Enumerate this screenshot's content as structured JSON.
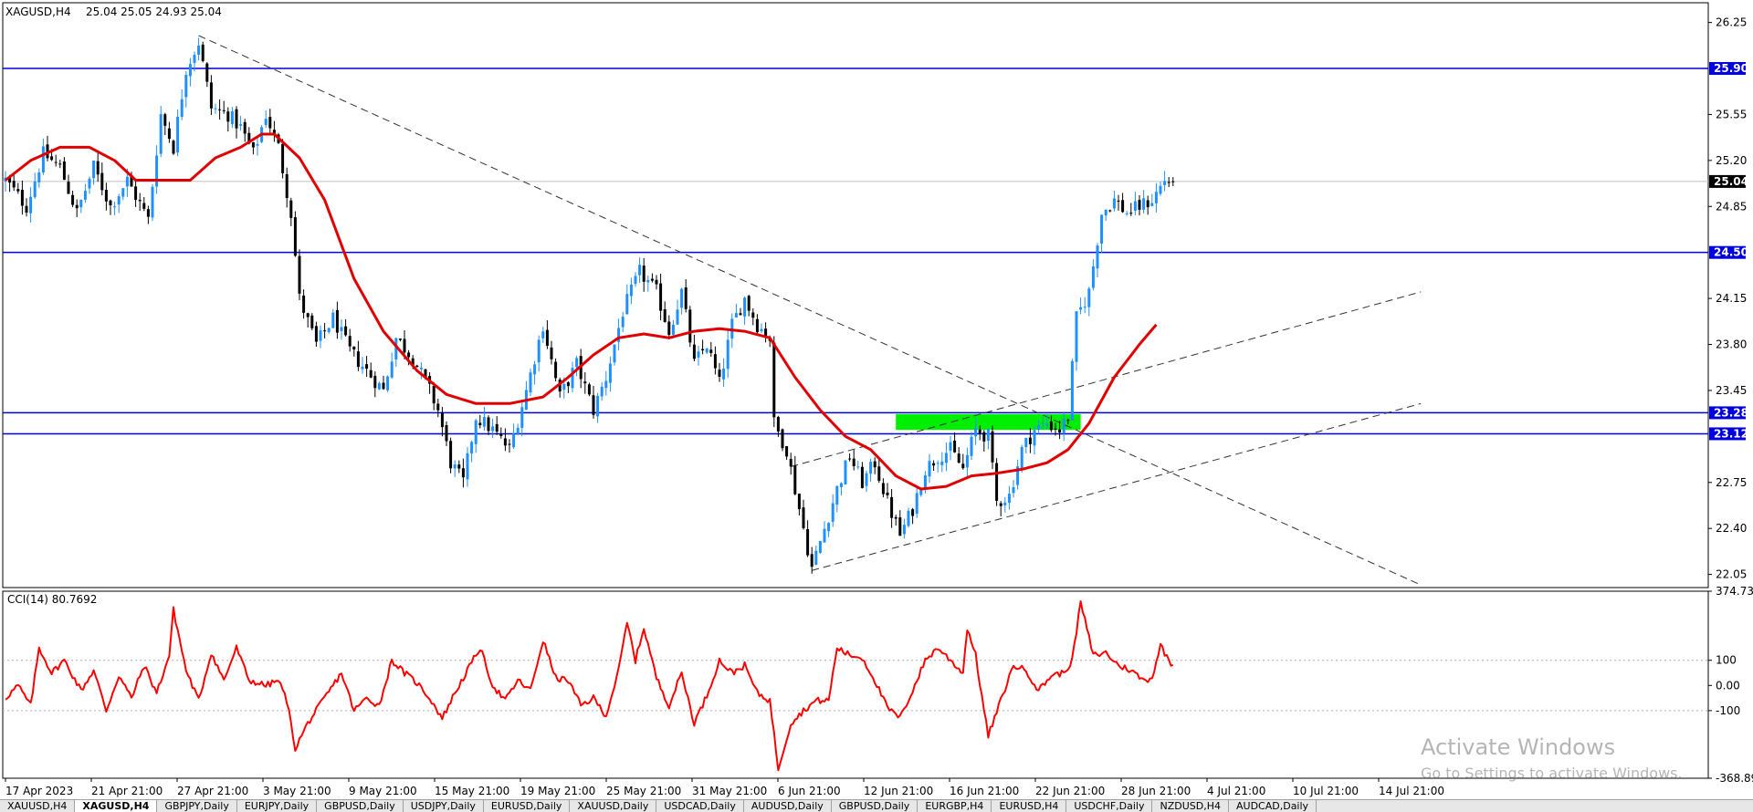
{
  "header": {
    "symbol": "XAGUSD,H4",
    "ohlc": "25.04 25.05 24.93 25.04"
  },
  "indicator": {
    "label": "CCI(14) 80.7692",
    "axis_labels": [
      "374.735",
      "100",
      "0.00",
      "-100",
      "-368.898"
    ]
  },
  "price_axis": {
    "ticks": [
      "26.25",
      "25.55",
      "25.20",
      "24.85",
      "24.15",
      "23.80",
      "23.45",
      "22.75",
      "22.40",
      "22.05"
    ],
    "level_tags": [
      "25.90",
      "25.04",
      "24.50",
      "23.28",
      "23.12"
    ]
  },
  "time_axis": {
    "labels": [
      "17 Apr 2023",
      "21 Apr 21:00",
      "27 Apr 21:00",
      "3 May 21:00",
      "9 May 21:00",
      "15 May 21:00",
      "19 May 21:00",
      "25 May 21:00",
      "31 May 21:00",
      "6 Jun 21:00",
      "12 Jun 21:00",
      "16 Jun 21:00",
      "22 Jun 21:00",
      "28 Jun 21:00",
      "4 Jul 21:00",
      "10 Jul 21:00",
      "14 Jul 21:00"
    ]
  },
  "tabs": [
    "XAUUSD,H4",
    "XAGUSD,H4",
    "GBPJPY,Daily",
    "EURJPY,Daily",
    "GBPUSD,Daily",
    "USDJPY,Daily",
    "EURUSD,Daily",
    "XAUUSD,Daily",
    "USDCAD,Daily",
    "AUDUSD,Daily",
    "GBPUSD,Daily",
    "EURGBP,H4",
    "EURUSD,H4",
    "USDCHF,Daily",
    "NZDUSD,H4",
    "AUDCAD,Daily"
  ],
  "watermark": {
    "title": "Activate Windows",
    "subtitle": "Go to Settings to activate Windows."
  },
  "colors": {
    "candle_up": "#1e90ff",
    "candle_down": "#000000",
    "moving_average": "#e00000",
    "cci_line": "#ff0000",
    "horizontal_levels": "#0000dd",
    "level_tag_bg": "#0000dd",
    "current_price_tag_bg": "#000000",
    "zone_fill": "#00ee00",
    "trendlines": "#333333"
  },
  "chart_data": {
    "type": "candlestick",
    "symbol": "XAGUSD",
    "timeframe": "H4",
    "ylim": [
      21.95,
      26.4
    ],
    "horizontal_levels": [
      25.9,
      24.5,
      23.28,
      23.12
    ],
    "current_price": 25.04,
    "anchors": [
      {
        "t": 0,
        "p": 25.05
      },
      {
        "t": 5,
        "p": 24.85
      },
      {
        "t": 9,
        "p": 25.25
      },
      {
        "t": 13,
        "p": 25.15
      },
      {
        "t": 17,
        "p": 24.8
      },
      {
        "t": 21,
        "p": 25.15
      },
      {
        "t": 25,
        "p": 24.85
      },
      {
        "t": 29,
        "p": 25.05
      },
      {
        "t": 34,
        "p": 24.75
      },
      {
        "t": 37,
        "p": 25.55
      },
      {
        "t": 40,
        "p": 25.3
      },
      {
        "t": 43,
        "p": 25.9
      },
      {
        "t": 46,
        "p": 26.1
      },
      {
        "t": 49,
        "p": 25.6
      },
      {
        "t": 53,
        "p": 25.55
      },
      {
        "t": 56,
        "p": 25.45
      },
      {
        "t": 59,
        "p": 25.25
      },
      {
        "t": 62,
        "p": 25.55
      },
      {
        "t": 65,
        "p": 25.3
      },
      {
        "t": 68,
        "p": 24.8
      },
      {
        "t": 70,
        "p": 24.15
      },
      {
        "t": 74,
        "p": 23.8
      },
      {
        "t": 78,
        "p": 24.0
      },
      {
        "t": 82,
        "p": 23.75
      },
      {
        "t": 86,
        "p": 23.6
      },
      {
        "t": 90,
        "p": 23.45
      },
      {
        "t": 93,
        "p": 23.85
      },
      {
        "t": 97,
        "p": 23.7
      },
      {
        "t": 101,
        "p": 23.45
      },
      {
        "t": 103,
        "p": 23.3
      },
      {
        "t": 106,
        "p": 22.9
      },
      {
        "t": 109,
        "p": 22.75
      },
      {
        "t": 112,
        "p": 23.25
      },
      {
        "t": 116,
        "p": 23.15
      },
      {
        "t": 120,
        "p": 23.0
      },
      {
        "t": 124,
        "p": 23.45
      },
      {
        "t": 128,
        "p": 23.95
      },
      {
        "t": 132,
        "p": 23.4
      },
      {
        "t": 136,
        "p": 23.65
      },
      {
        "t": 140,
        "p": 23.3
      },
      {
        "t": 143,
        "p": 23.55
      },
      {
        "t": 147,
        "p": 24.05
      },
      {
        "t": 151,
        "p": 24.35
      },
      {
        "t": 155,
        "p": 24.2
      },
      {
        "t": 158,
        "p": 23.9
      },
      {
        "t": 161,
        "p": 24.2
      },
      {
        "t": 164,
        "p": 23.65
      },
      {
        "t": 167,
        "p": 23.8
      },
      {
        "t": 170,
        "p": 23.5
      },
      {
        "t": 173,
        "p": 23.95
      },
      {
        "t": 176,
        "p": 24.15
      },
      {
        "t": 179,
        "p": 23.95
      },
      {
        "t": 182,
        "p": 23.85
      },
      {
        "t": 183,
        "p": 23.2
      },
      {
        "t": 186,
        "p": 23.0
      },
      {
        "t": 189,
        "p": 22.55
      },
      {
        "t": 192,
        "p": 22.1
      },
      {
        "t": 195,
        "p": 22.4
      },
      {
        "t": 198,
        "p": 22.7
      },
      {
        "t": 201,
        "p": 22.95
      },
      {
        "t": 204,
        "p": 22.75
      },
      {
        "t": 207,
        "p": 22.9
      },
      {
        "t": 210,
        "p": 22.6
      },
      {
        "t": 213,
        "p": 22.35
      },
      {
        "t": 216,
        "p": 22.55
      },
      {
        "t": 219,
        "p": 22.85
      },
      {
        "t": 222,
        "p": 22.95
      },
      {
        "t": 225,
        "p": 23.0
      },
      {
        "t": 228,
        "p": 22.85
      },
      {
        "t": 231,
        "p": 23.15
      },
      {
        "t": 234,
        "p": 23.1
      },
      {
        "t": 236,
        "p": 22.6
      },
      {
        "t": 239,
        "p": 22.65
      },
      {
        "t": 242,
        "p": 23.0
      },
      {
        "t": 245,
        "p": 23.15
      },
      {
        "t": 248,
        "p": 23.2
      },
      {
        "t": 251,
        "p": 23.15
      },
      {
        "t": 253,
        "p": 23.25
      },
      {
        "t": 255,
        "p": 24.0
      },
      {
        "t": 258,
        "p": 24.2
      },
      {
        "t": 261,
        "p": 24.8
      },
      {
        "t": 264,
        "p": 24.9
      },
      {
        "t": 267,
        "p": 24.8
      },
      {
        "t": 270,
        "p": 24.85
      },
      {
        "t": 273,
        "p": 24.9
      },
      {
        "t": 276,
        "p": 25.05
      },
      {
        "t": 278,
        "p": 25.04
      }
    ],
    "moving_average": [
      {
        "t": 0,
        "p": 25.05
      },
      {
        "t": 6,
        "p": 25.2
      },
      {
        "t": 13,
        "p": 25.3
      },
      {
        "t": 20,
        "p": 25.3
      },
      {
        "t": 26,
        "p": 25.2
      },
      {
        "t": 31,
        "p": 25.05
      },
      {
        "t": 38,
        "p": 25.05
      },
      {
        "t": 44,
        "p": 25.05
      },
      {
        "t": 50,
        "p": 25.22
      },
      {
        "t": 56,
        "p": 25.3
      },
      {
        "t": 61,
        "p": 25.4
      },
      {
        "t": 64,
        "p": 25.4
      },
      {
        "t": 70,
        "p": 25.22
      },
      {
        "t": 76,
        "p": 24.9
      },
      {
        "t": 83,
        "p": 24.3
      },
      {
        "t": 90,
        "p": 23.9
      },
      {
        "t": 98,
        "p": 23.6
      },
      {
        "t": 105,
        "p": 23.42
      },
      {
        "t": 112,
        "p": 23.35
      },
      {
        "t": 120,
        "p": 23.35
      },
      {
        "t": 128,
        "p": 23.4
      },
      {
        "t": 134,
        "p": 23.55
      },
      {
        "t": 140,
        "p": 23.72
      },
      {
        "t": 146,
        "p": 23.85
      },
      {
        "t": 152,
        "p": 23.88
      },
      {
        "t": 158,
        "p": 23.85
      },
      {
        "t": 164,
        "p": 23.9
      },
      {
        "t": 170,
        "p": 23.92
      },
      {
        "t": 176,
        "p": 23.9
      },
      {
        "t": 182,
        "p": 23.85
      },
      {
        "t": 188,
        "p": 23.55
      },
      {
        "t": 194,
        "p": 23.3
      },
      {
        "t": 200,
        "p": 23.1
      },
      {
        "t": 206,
        "p": 23.0
      },
      {
        "t": 212,
        "p": 22.8
      },
      {
        "t": 218,
        "p": 22.7
      },
      {
        "t": 224,
        "p": 22.72
      },
      {
        "t": 230,
        "p": 22.8
      },
      {
        "t": 236,
        "p": 22.82
      },
      {
        "t": 242,
        "p": 22.85
      },
      {
        "t": 248,
        "p": 22.9
      },
      {
        "t": 253,
        "p": 23.0
      },
      {
        "t": 258,
        "p": 23.2
      },
      {
        "t": 264,
        "p": 23.55
      },
      {
        "t": 270,
        "p": 23.8
      },
      {
        "t": 274,
        "p": 23.95
      }
    ],
    "trendlines": [
      {
        "from": {
          "t": 46,
          "p": 26.15
        },
        "to": {
          "t": 337,
          "p": 21.97
        }
      },
      {
        "from": {
          "t": 192,
          "p": 22.08
        },
        "to": {
          "t": 337,
          "p": 23.35
        }
      },
      {
        "from": {
          "t": 187,
          "p": 22.87
        },
        "to": {
          "t": 337,
          "p": 24.2
        }
      }
    ],
    "zone": {
      "t_start": 212,
      "t_end": 256,
      "p_low": 23.15,
      "p_high": 23.27
    },
    "cci": {
      "label": "CCI(14)",
      "current": 80.7692,
      "ylim": [
        -368.898,
        374.735
      ],
      "reference_levels": [
        100,
        0,
        -100
      ],
      "anchors": [
        {
          "t": 0,
          "p": -50
        },
        {
          "t": 3,
          "p": 0
        },
        {
          "t": 6,
          "p": -80
        },
        {
          "t": 8,
          "p": 150
        },
        {
          "t": 11,
          "p": 50
        },
        {
          "t": 14,
          "p": 100
        },
        {
          "t": 18,
          "p": -20
        },
        {
          "t": 21,
          "p": 60
        },
        {
          "t": 24,
          "p": -100
        },
        {
          "t": 27,
          "p": 40
        },
        {
          "t": 30,
          "p": -50
        },
        {
          "t": 33,
          "p": 80
        },
        {
          "t": 36,
          "p": -30
        },
        {
          "t": 39,
          "p": 120
        },
        {
          "t": 40,
          "p": 300
        },
        {
          "t": 43,
          "p": 60
        },
        {
          "t": 46,
          "p": -60
        },
        {
          "t": 49,
          "p": 130
        },
        {
          "t": 52,
          "p": 20
        },
        {
          "t": 55,
          "p": 150
        },
        {
          "t": 58,
          "p": 20
        },
        {
          "t": 62,
          "p": 0
        },
        {
          "t": 65,
          "p": 20
        },
        {
          "t": 67,
          "p": -60
        },
        {
          "t": 69,
          "p": -250
        },
        {
          "t": 72,
          "p": -150
        },
        {
          "t": 76,
          "p": -50
        },
        {
          "t": 80,
          "p": 50
        },
        {
          "t": 83,
          "p": -100
        },
        {
          "t": 86,
          "p": -50
        },
        {
          "t": 89,
          "p": -80
        },
        {
          "t": 92,
          "p": 100
        },
        {
          "t": 95,
          "p": 50
        },
        {
          "t": 98,
          "p": 10
        },
        {
          "t": 101,
          "p": -50
        },
        {
          "t": 104,
          "p": -130
        },
        {
          "t": 107,
          "p": -30
        },
        {
          "t": 110,
          "p": 60
        },
        {
          "t": 113,
          "p": 150
        },
        {
          "t": 116,
          "p": 0
        },
        {
          "t": 119,
          "p": -60
        },
        {
          "t": 122,
          "p": 20
        },
        {
          "t": 125,
          "p": -20
        },
        {
          "t": 128,
          "p": 180
        },
        {
          "t": 131,
          "p": 30
        },
        {
          "t": 134,
          "p": 20
        },
        {
          "t": 137,
          "p": -80
        },
        {
          "t": 140,
          "p": -50
        },
        {
          "t": 143,
          "p": -120
        },
        {
          "t": 146,
          "p": 60
        },
        {
          "t": 148,
          "p": 250
        },
        {
          "t": 150,
          "p": 100
        },
        {
          "t": 152,
          "p": 230
        },
        {
          "t": 155,
          "p": 30
        },
        {
          "t": 158,
          "p": -80
        },
        {
          "t": 161,
          "p": 50
        },
        {
          "t": 164,
          "p": -150
        },
        {
          "t": 167,
          "p": -40
        },
        {
          "t": 170,
          "p": 100
        },
        {
          "t": 173,
          "p": 50
        },
        {
          "t": 176,
          "p": 80
        },
        {
          "t": 179,
          "p": -30
        },
        {
          "t": 182,
          "p": -60
        },
        {
          "t": 184,
          "p": -330
        },
        {
          "t": 187,
          "p": -150
        },
        {
          "t": 190,
          "p": -100
        },
        {
          "t": 193,
          "p": -60
        },
        {
          "t": 196,
          "p": -60
        },
        {
          "t": 198,
          "p": 150
        },
        {
          "t": 201,
          "p": 120
        },
        {
          "t": 204,
          "p": 110
        },
        {
          "t": 207,
          "p": 20
        },
        {
          "t": 210,
          "p": -90
        },
        {
          "t": 213,
          "p": -130
        },
        {
          "t": 216,
          "p": -20
        },
        {
          "t": 219,
          "p": 100
        },
        {
          "t": 222,
          "p": 150
        },
        {
          "t": 225,
          "p": 100
        },
        {
          "t": 228,
          "p": 50
        },
        {
          "t": 229,
          "p": 230
        },
        {
          "t": 231,
          "p": 120
        },
        {
          "t": 233,
          "p": -100
        },
        {
          "t": 234,
          "p": -200
        },
        {
          "t": 237,
          "p": -60
        },
        {
          "t": 240,
          "p": 80
        },
        {
          "t": 243,
          "p": 60
        },
        {
          "t": 246,
          "p": -20
        },
        {
          "t": 249,
          "p": 40
        },
        {
          "t": 252,
          "p": 50
        },
        {
          "t": 254,
          "p": 100
        },
        {
          "t": 256,
          "p": 330
        },
        {
          "t": 259,
          "p": 120
        },
        {
          "t": 262,
          "p": 130
        },
        {
          "t": 265,
          "p": 80
        },
        {
          "t": 268,
          "p": 60
        },
        {
          "t": 271,
          "p": 20
        },
        {
          "t": 273,
          "p": 30
        },
        {
          "t": 275,
          "p": 160
        },
        {
          "t": 277,
          "p": 100
        },
        {
          "t": 278,
          "p": 80
        }
      ]
    },
    "x_labels": [
      "17 Apr 2023",
      "21 Apr 21:00",
      "27 Apr 21:00",
      "3 May 21:00",
      "9 May 21:00",
      "15 May 21:00",
      "19 May 21:00",
      "25 May 21:00",
      "31 May 21:00",
      "6 Jun 21:00",
      "12 Jun 21:00",
      "16 Jun 21:00",
      "22 Jun 21:00",
      "28 Jun 21:00",
      "4 Jul 21:00",
      "10 Jul 21:00",
      "14 Jul 21:00"
    ],
    "y_tick_labels": [
      "26.25",
      "25.55",
      "25.20",
      "24.85",
      "24.15",
      "23.80",
      "23.45",
      "22.75",
      "22.40",
      "22.05"
    ],
    "grid": false,
    "legend": "none"
  }
}
